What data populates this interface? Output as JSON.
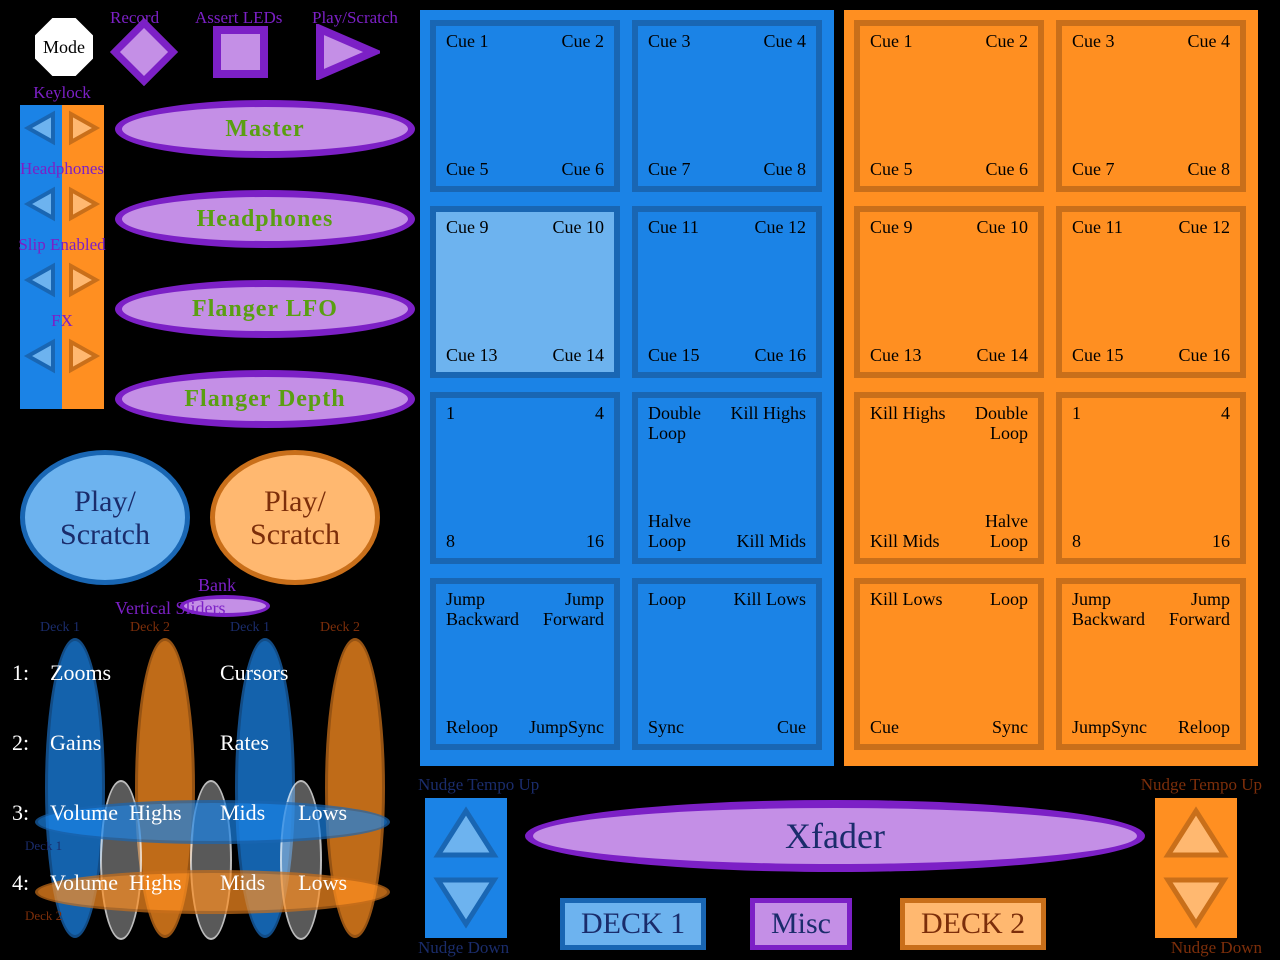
{
  "colors": {
    "blue": "#1b83e6",
    "blueLight": "#6db3ef",
    "blueDark": "#1966b3",
    "orange": "#ff8f21",
    "orangeLight": "#ffb870",
    "orangeDark": "#c96f1a",
    "purple": "#7c20c6",
    "purpleFill": "#c48fe6",
    "purpleLight": "#e0c9f2",
    "green": "#5a9f12",
    "navy": "#1a2c6b",
    "brown": "#7c2e0a",
    "white": "#ffffff"
  },
  "top": {
    "mode": "Mode",
    "record": "Record",
    "assert": "Assert LEDs",
    "play": "Play/Scratch"
  },
  "leftToggles": [
    {
      "label": "Keylock"
    },
    {
      "label": "Headphones"
    },
    {
      "label": "Slip Enabled"
    },
    {
      "label": "FX"
    }
  ],
  "ellipseButtons": [
    {
      "label": "Master"
    },
    {
      "label": "Headphones"
    },
    {
      "label": "Flanger LFO"
    },
    {
      "label": "Flanger Depth"
    }
  ],
  "playCircles": {
    "label": "Play/\nScratch"
  },
  "bank": {
    "label": "Bank",
    "sub": "Vertical Sliders"
  },
  "sliderLabels": {
    "d1": "Deck 1",
    "d2": "Deck 2"
  },
  "sliderRows": [
    {
      "n": "1:",
      "a": "Zooms",
      "b": "Cursors"
    },
    {
      "n": "2:",
      "a": "Gains",
      "b": "Rates"
    },
    {
      "n": "3:",
      "a": "Volume  Highs",
      "b": "Mids      Lows"
    },
    {
      "n": "4:",
      "a": "Volume  Highs",
      "b": "Mids      Lows"
    }
  ],
  "deck1Pads": {
    "r1": [
      [
        "Cue 1",
        "Cue 2",
        "Cue 5",
        "Cue 6"
      ],
      [
        "Cue 3",
        "Cue 4",
        "Cue 7",
        "Cue 8"
      ]
    ],
    "r2": [
      [
        "Cue 9",
        "Cue 10",
        "Cue 13",
        "Cue 14"
      ],
      [
        "Cue 11",
        "Cue 12",
        "Cue 15",
        "Cue 16"
      ]
    ],
    "r3": [
      [
        "1",
        "4",
        "8",
        "16"
      ],
      [
        "Double\nLoop",
        "Kill Highs",
        "Halve\nLoop",
        "Kill Mids"
      ]
    ],
    "r4": [
      [
        "Jump\nBackward",
        "Jump\nForward",
        "Reloop",
        "JumpSync"
      ],
      [
        "Loop",
        "Kill Lows",
        "Sync",
        "Cue"
      ]
    ]
  },
  "deck2Pads": {
    "r1": [
      [
        "Cue 1",
        "Cue 2",
        "Cue 5",
        "Cue 6"
      ],
      [
        "Cue 3",
        "Cue 4",
        "Cue 7",
        "Cue 8"
      ]
    ],
    "r2": [
      [
        "Cue 9",
        "Cue 10",
        "Cue 13",
        "Cue 14"
      ],
      [
        "Cue 11",
        "Cue 12",
        "Cue 15",
        "Cue 16"
      ]
    ],
    "r3": [
      [
        "Kill Highs",
        "Double\nLoop",
        "Kill Mids",
        "Halve\nLoop"
      ],
      [
        "1",
        "4",
        "8",
        "16"
      ]
    ],
    "r4": [
      [
        "Kill Lows",
        "Loop",
        "Cue",
        "Sync"
      ],
      [
        "Jump\nBackward",
        "Jump\nForward",
        "JumpSync",
        "Reloop"
      ]
    ]
  },
  "nudge": {
    "up": "Nudge Tempo Up",
    "down": "Nudge Down"
  },
  "xfader": "Xfader",
  "legend": {
    "d1": "DECK 1",
    "misc": "Misc",
    "d2": "DECK 2"
  }
}
